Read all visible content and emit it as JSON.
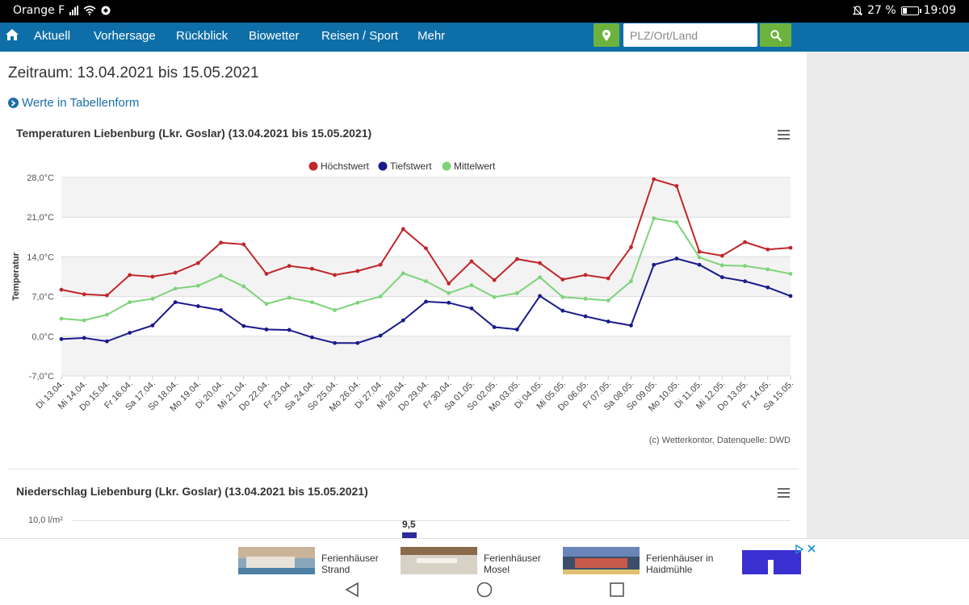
{
  "status": {
    "carrier": "Orange F",
    "battery": "27 %",
    "time": "19:09"
  },
  "nav": {
    "items": [
      "Aktuell",
      "Vorhersage",
      "Rückblick",
      "Biowetter",
      "Reisen / Sport",
      "Mehr"
    ],
    "search_placeholder": "PLZ/Ort/Land"
  },
  "page": {
    "period": "Zeitraum: 13.04.2021 bis 15.05.2021",
    "table_link": "Werte in Tabellenform"
  },
  "temp_chart": {
    "title": "Temperaturen Liebenburg (Lkr. Goslar) (13.04.2021 bis 15.05.2021)",
    "credit": "(c) Wetterkontor, Datenquelle: DWD"
  },
  "precip_chart": {
    "title": "Niederschlag Liebenburg (Lkr. Goslar) (13.04.2021 bis 15.05.2021)",
    "y_tick": "10,0 l/m²",
    "visible_value_label": "9,5"
  },
  "chart_data": {
    "type": "line",
    "title": "Temperaturen Liebenburg (Lkr. Goslar) (13.04.2021 bis 15.05.2021)",
    "xlabel": "",
    "ylabel": "Temperatur",
    "ylim": [
      -7,
      28
    ],
    "yticks": [
      -7,
      0,
      7,
      14,
      21,
      28
    ],
    "ytick_labels": [
      "-7,0°C",
      "0,0°C",
      "7,0°C",
      "14,0°C",
      "21,0°C",
      "28,0°C"
    ],
    "legend_position": "top-center",
    "grid": true,
    "categories": [
      "Di 13.04.",
      "Mi 14.04.",
      "Do 15.04.",
      "Fr 16.04.",
      "Sa 17.04.",
      "So 18.04.",
      "Mo 19.04.",
      "Di 20.04.",
      "Mi 21.04.",
      "Do 22.04.",
      "Fr 23.04.",
      "Sa 24.04.",
      "So 25.04.",
      "Mo 26.04.",
      "Di 27.04.",
      "Mi 28.04.",
      "Do 29.04.",
      "Fr 30.04.",
      "Sa 01.05.",
      "So 02.05.",
      "Mo 03.05.",
      "Di 04.05.",
      "Mi 05.05.",
      "Do 06.05.",
      "Fr 07.05.",
      "Sa 08.05.",
      "So 09.05.",
      "Mo 10.05.",
      "Di 11.05.",
      "Mi 12.05.",
      "Do 13.05.",
      "Fr 14.05.",
      "Sa 15.05."
    ],
    "series": [
      {
        "name": "Höchstwert",
        "color": "#c0262b",
        "values": [
          8.2,
          7.4,
          7.2,
          10.8,
          10.5,
          11.2,
          12.9,
          16.5,
          16.2,
          11.0,
          12.4,
          11.9,
          10.8,
          11.5,
          12.6,
          18.9,
          15.5,
          9.3,
          13.2,
          9.9,
          13.6,
          12.9,
          10.0,
          10.8,
          10.2,
          15.7,
          27.7,
          26.5,
          14.9,
          14.2,
          16.6,
          15.3,
          15.6
        ]
      },
      {
        "name": "Tiefstwert",
        "color": "#1a1a8c",
        "values": [
          -0.5,
          -0.3,
          -0.9,
          0.6,
          1.9,
          6.0,
          5.3,
          4.6,
          1.8,
          1.2,
          1.1,
          -0.2,
          -1.2,
          -1.2,
          0.1,
          2.8,
          6.1,
          5.9,
          4.9,
          1.6,
          1.2,
          7.1,
          4.5,
          3.5,
          2.6,
          1.9,
          12.6,
          13.7,
          12.6,
          10.4,
          9.7,
          8.6,
          7.1
        ]
      },
      {
        "name": "Mittelwert",
        "color": "#7ed37a",
        "values": [
          3.1,
          2.8,
          3.8,
          6.0,
          6.6,
          8.4,
          8.9,
          10.7,
          8.8,
          5.7,
          6.8,
          6.0,
          4.6,
          5.9,
          7.0,
          11.1,
          9.7,
          7.6,
          9.0,
          6.9,
          7.6,
          10.4,
          6.9,
          6.6,
          6.3,
          9.7,
          20.8,
          20.1,
          13.9,
          12.5,
          12.4,
          11.8,
          11.0
        ]
      }
    ]
  },
  "ads": [
    {
      "label_line1": "Ferienhäuser",
      "label_line2": "Strand"
    },
    {
      "label_line1": "Ferienhäuser",
      "label_line2": "Mosel"
    },
    {
      "label_line1": "Ferienhäuser in",
      "label_line2": "Haidmühle"
    }
  ],
  "icons": {
    "home": "home-icon",
    "location": "map-marker-icon",
    "search": "search-icon",
    "menu": "hamburger-menu-icon",
    "link": "chevron-circle-right-icon"
  }
}
